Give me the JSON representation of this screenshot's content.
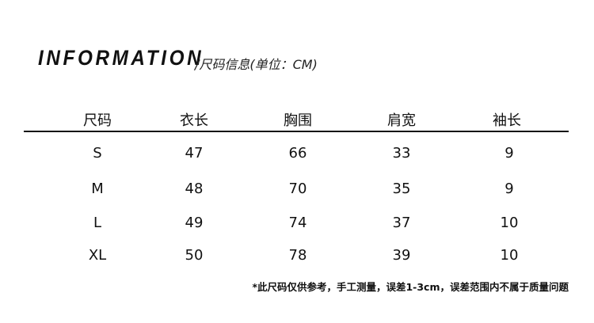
{
  "title": {
    "main": "INFORMATION",
    "sub": "/尺码信息(单位：CM)"
  },
  "table": {
    "headers": [
      "尺码",
      "衣长",
      "胸围",
      "肩宽",
      "袖长"
    ],
    "rows": [
      [
        "S",
        "47",
        "66",
        "33",
        "9"
      ],
      [
        "M",
        "48",
        "70",
        "35",
        "9"
      ],
      [
        "L",
        "49",
        "74",
        "37",
        "10"
      ],
      [
        "XL",
        "50",
        "78",
        "39",
        "10"
      ]
    ]
  },
  "footnote": "*此尺码仅供参考，手工测量，误差1-3cm，误差范围内不属于质量问题"
}
